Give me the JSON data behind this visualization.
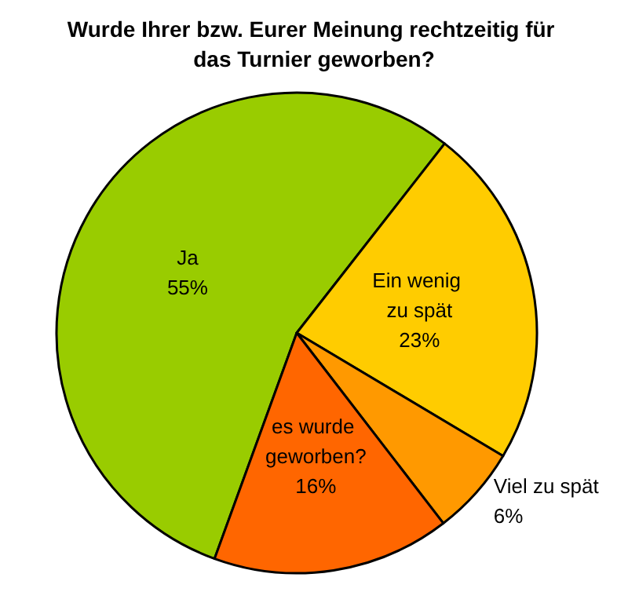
{
  "chart_data": {
    "type": "pie",
    "title": "Wurde Ihrer bzw. Eurer Meinung rechtzeitig für das Turnier geworben?",
    "categories": [
      "Ja",
      "Ein wenig zu spät",
      "Viel zu spät",
      "es wurde geworben?"
    ],
    "values": [
      55,
      23,
      6,
      16
    ],
    "value_labels": [
      "55%",
      "23%",
      "6%",
      "16%"
    ],
    "colors": [
      "#99cc00",
      "#ffcc00",
      "#ff9900",
      "#ff6600"
    ]
  }
}
